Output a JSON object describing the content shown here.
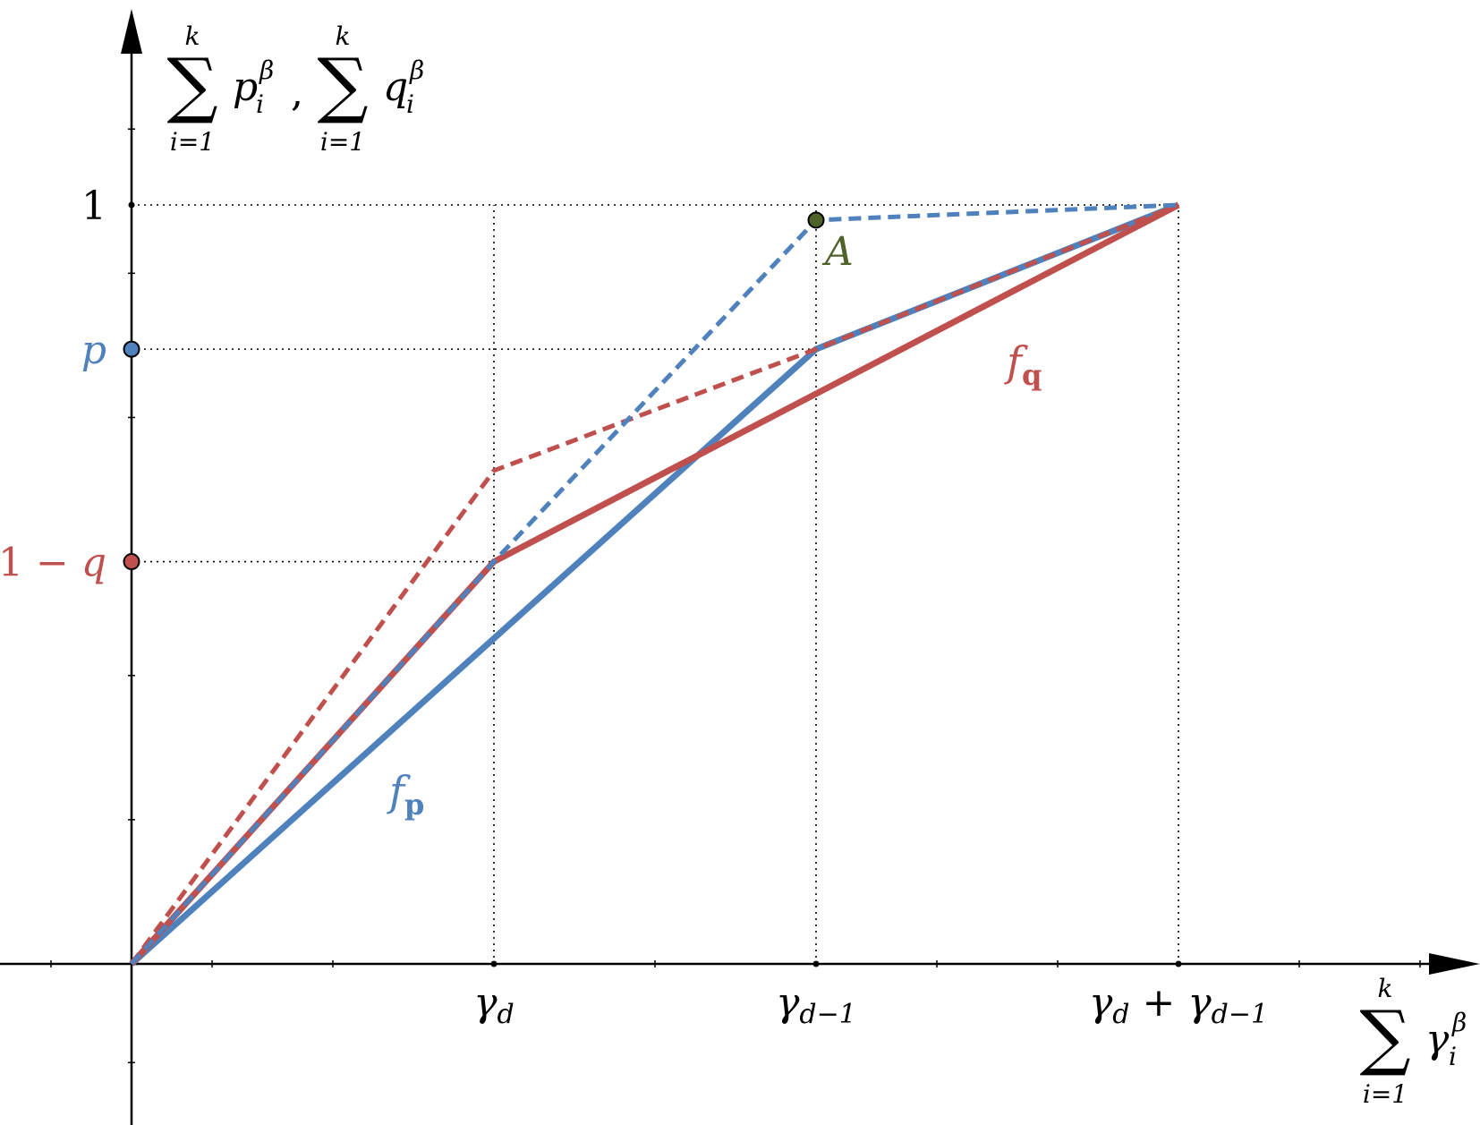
{
  "chart_data": {
    "type": "line",
    "x_axis": {
      "label": {
        "sum": "∑",
        "upper": "k",
        "lower": "i=1",
        "var": "γ",
        "sup": "β",
        "sub": "i"
      },
      "ticks": [
        {
          "value": 0.9,
          "label": "γ_d",
          "parts": [
            [
              "γ",
              "main"
            ],
            [
              "d",
              "sub"
            ]
          ]
        },
        {
          "value": 1.7,
          "label": "γ_{d−1}",
          "parts": [
            [
              "γ",
              "main"
            ],
            [
              "d−1",
              "sub"
            ]
          ]
        },
        {
          "value": 2.6,
          "label": "γ_d + γ_{d−1}",
          "parts": [
            [
              "γ",
              "main"
            ],
            [
              "d",
              "sub"
            ],
            [
              " + ",
              "op"
            ],
            [
              "γ",
              "main"
            ],
            [
              "d−1",
              "sub"
            ]
          ]
        }
      ],
      "xlim": [
        -0.3,
        3.2
      ]
    },
    "y_axis": {
      "label": {
        "terms": [
          {
            "sum": "∑",
            "upper": "k",
            "lower": "i=1",
            "var": "p",
            "sup": "β",
            "sub": "i"
          },
          {
            "sum": "∑",
            "upper": "k",
            "lower": "i=1",
            "var": "q",
            "sup": "β",
            "sub": "i"
          }
        ],
        "separator": ","
      },
      "ticks": [
        {
          "value": 1.0,
          "label": "1",
          "color": "#000000",
          "marker": false
        },
        {
          "value": 0.81,
          "label": "p",
          "color": "#4f81bd",
          "marker": true
        },
        {
          "value": 0.53,
          "label": "1 − q",
          "color": "#c0504d",
          "marker": true
        }
      ],
      "ylim": [
        -0.15,
        1.22
      ]
    },
    "series": [
      {
        "name": "f_p",
        "label_main": "f",
        "label_sub": "p",
        "color": "#4f81bd",
        "style": "solid",
        "x": [
          0,
          1.7,
          2.6
        ],
        "y": [
          0,
          0.81,
          1.0
        ]
      },
      {
        "name": "f_q",
        "label_main": "f",
        "label_sub": "q",
        "color": "#c0504d",
        "style": "solid",
        "x": [
          0,
          0.9,
          2.6
        ],
        "y": [
          0,
          0.53,
          1.0
        ]
      },
      {
        "color": "#c0504d",
        "style": "dashed",
        "x": [
          0,
          0.9,
          1.7,
          2.6
        ],
        "y": [
          0,
          0.65,
          0.81,
          1.0
        ]
      },
      {
        "color": "#4f81bd",
        "style": "dashed",
        "x": [
          0,
          0.9,
          1.7,
          2.6
        ],
        "y": [
          0,
          0.53,
          0.98,
          1.0
        ]
      }
    ],
    "points": [
      {
        "label": "A",
        "x": 1.7,
        "y": 0.98,
        "color": "#4f6228"
      }
    ],
    "gridlines": "dotted reference lines at tick values"
  }
}
